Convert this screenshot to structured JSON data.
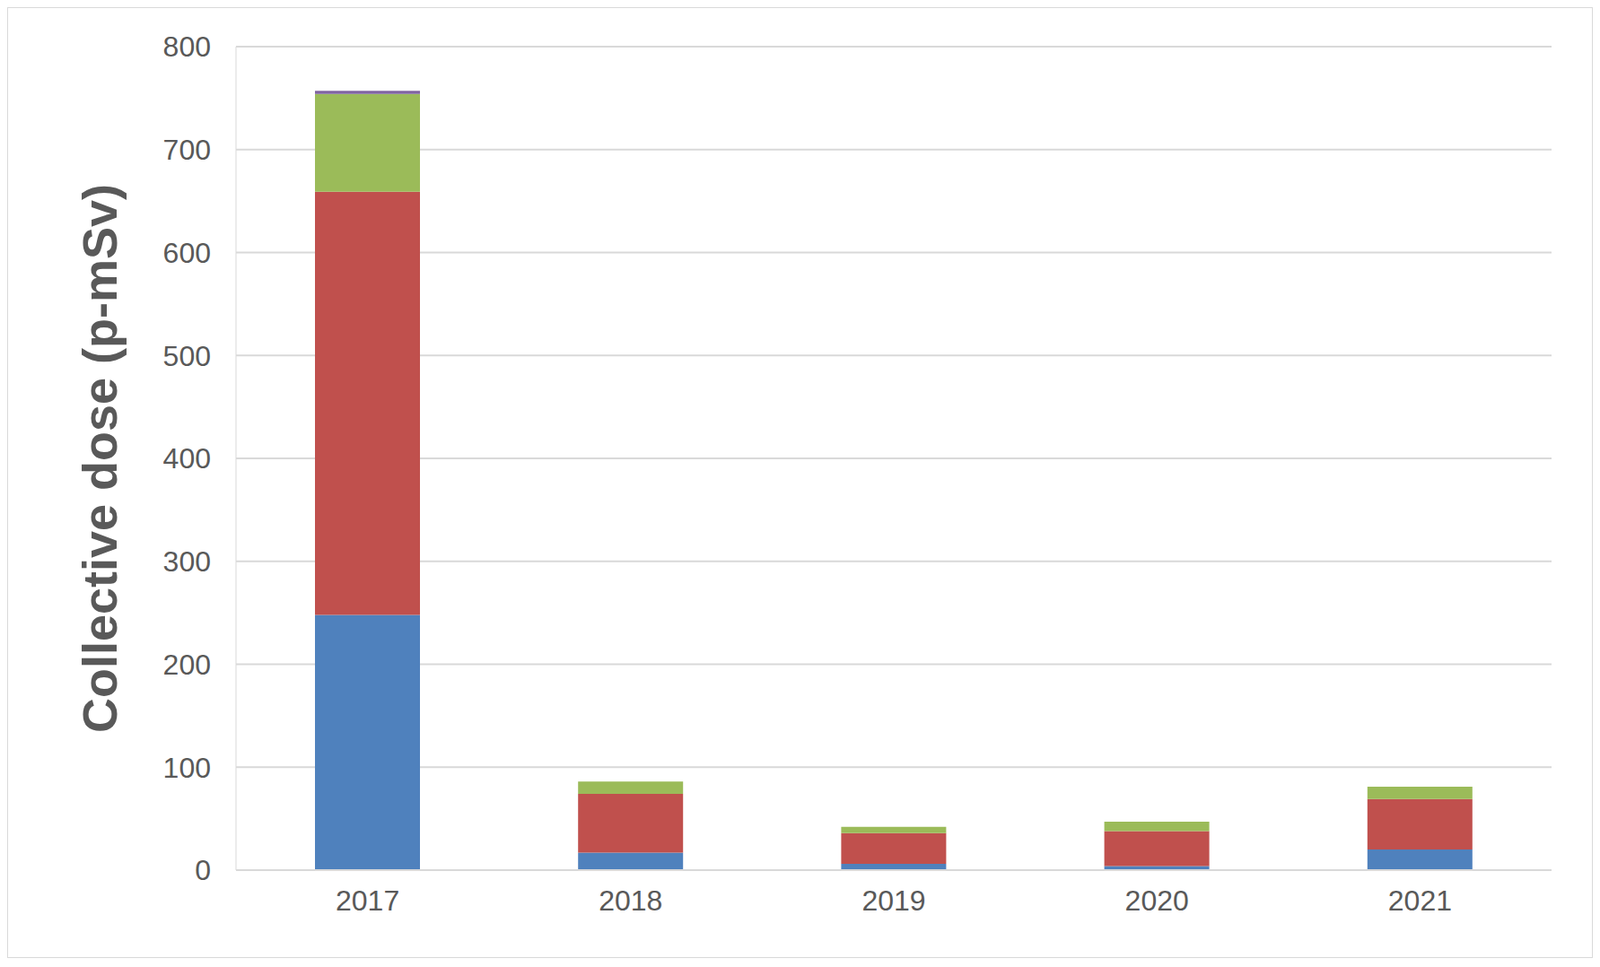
{
  "chart_data": {
    "type": "bar",
    "stacked": true,
    "y_label": "Collective dose (p-mSv)",
    "categories": [
      "2017",
      "2018",
      "2019",
      "2020",
      "2021"
    ],
    "series": [
      {
        "color": "#4f81bd",
        "values": [
          248,
          17,
          6,
          4,
          20
        ]
      },
      {
        "color": "#c0504d",
        "values": [
          411,
          57,
          30,
          34,
          49
        ]
      },
      {
        "color": "#9bbb59",
        "values": [
          95,
          12,
          6,
          9,
          12
        ]
      },
      {
        "color": "#8064a2",
        "values": [
          3,
          0,
          0,
          0,
          0
        ]
      }
    ],
    "ylim": [
      0,
      800
    ],
    "yticks": [
      0,
      100,
      200,
      300,
      400,
      500,
      600,
      700,
      800
    ],
    "grid": true
  }
}
